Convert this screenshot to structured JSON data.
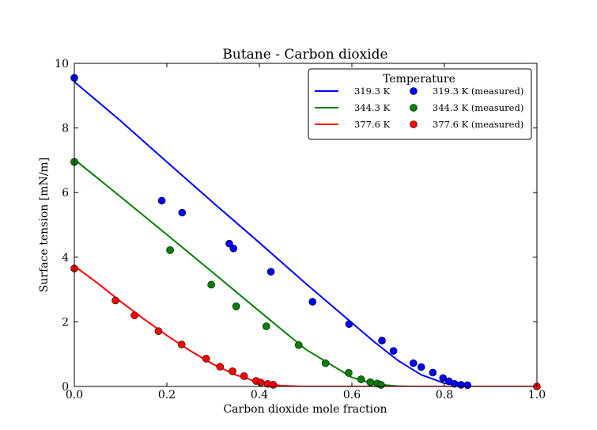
{
  "chart_data": {
    "type": "line",
    "title": "Butane - Carbon dioxide",
    "xlabel": "Carbon dioxide mole fraction",
    "ylabel": "Surface tension [mN/m]",
    "xlim": [
      0.0,
      1.0
    ],
    "ylim": [
      0,
      10
    ],
    "x_ticks": [
      "0.0",
      "0.2",
      "0.4",
      "0.6",
      "0.8",
      "1.0"
    ],
    "y_ticks": [
      "0",
      "2",
      "4",
      "6",
      "8",
      "10"
    ],
    "grid": false,
    "legend": {
      "title": "Temperature",
      "placement": "top-right",
      "entries": [
        {
          "label": "319.3 K",
          "kind": "line",
          "color": "#0000ff"
        },
        {
          "label": "344.3 K",
          "kind": "line",
          "color": "#008000"
        },
        {
          "label": "377.6 K",
          "kind": "line",
          "color": "#ff0000"
        },
        {
          "label": "319.3 K (measured)",
          "kind": "marker",
          "color": "#0000ff"
        },
        {
          "label": "344.3 K (measured)",
          "kind": "marker",
          "color": "#008000"
        },
        {
          "label": "377.6 K (measured)",
          "kind": "marker",
          "color": "#ff0000"
        }
      ]
    },
    "series": [
      {
        "name": "319.3 K",
        "kind": "line",
        "color": "#0000ff",
        "x": [
          0.0,
          0.1,
          0.2,
          0.3,
          0.4,
          0.5,
          0.6,
          0.65,
          0.7,
          0.75,
          0.8,
          0.85,
          0.88,
          1.0
        ],
        "y": [
          9.43,
          8.22,
          6.95,
          5.69,
          4.45,
          3.19,
          1.97,
          1.36,
          0.8,
          0.36,
          0.1,
          0.0,
          0.0,
          0.0
        ]
      },
      {
        "name": "344.3 K",
        "kind": "line",
        "color": "#008000",
        "x": [
          0.0,
          0.1,
          0.2,
          0.3,
          0.4,
          0.5,
          0.6,
          0.65,
          0.7,
          0.73,
          1.0
        ],
        "y": [
          7.03,
          5.87,
          4.7,
          3.52,
          2.33,
          1.15,
          0.28,
          0.07,
          0.01,
          0.0,
          0.0
        ]
      },
      {
        "name": "377.6 K",
        "kind": "line",
        "color": "#ff0000",
        "x": [
          0.0,
          0.05,
          0.1,
          0.15,
          0.2,
          0.25,
          0.3,
          0.35,
          0.4,
          0.45,
          0.49,
          1.0
        ],
        "y": [
          3.73,
          3.2,
          2.63,
          2.09,
          1.58,
          1.11,
          0.69,
          0.35,
          0.12,
          0.02,
          0.0,
          0.0
        ]
      },
      {
        "name": "319.3 K (measured)",
        "kind": "scatter",
        "color": "#0000ff",
        "x": [
          0.0,
          0.189,
          0.233,
          0.335,
          0.344,
          0.425,
          0.515,
          0.594,
          0.665,
          0.69,
          0.733,
          0.75,
          0.775,
          0.797,
          0.81,
          0.822,
          0.836,
          0.85
        ],
        "y": [
          9.55,
          5.75,
          5.38,
          4.42,
          4.27,
          3.55,
          2.62,
          1.93,
          1.42,
          1.1,
          0.72,
          0.6,
          0.43,
          0.26,
          0.16,
          0.08,
          0.05,
          0.04
        ]
      },
      {
        "name": "344.3 K (measured)",
        "kind": "scatter",
        "color": "#008000",
        "x": [
          0.0,
          0.207,
          0.296,
          0.35,
          0.415,
          0.485,
          0.543,
          0.593,
          0.62,
          0.64,
          0.655,
          0.663
        ],
        "y": [
          6.95,
          4.22,
          3.15,
          2.48,
          1.86,
          1.28,
          0.72,
          0.42,
          0.22,
          0.13,
          0.09,
          0.05
        ]
      },
      {
        "name": "377.6 K (measured)",
        "kind": "scatter",
        "color": "#ff0000",
        "x": [
          0.0,
          0.089,
          0.13,
          0.182,
          0.232,
          0.285,
          0.315,
          0.342,
          0.367,
          0.393,
          0.403,
          0.418,
          0.43,
          1.0
        ],
        "y": [
          3.65,
          2.66,
          2.2,
          1.71,
          1.3,
          0.86,
          0.61,
          0.47,
          0.32,
          0.17,
          0.12,
          0.08,
          0.05,
          0.0
        ]
      }
    ]
  }
}
